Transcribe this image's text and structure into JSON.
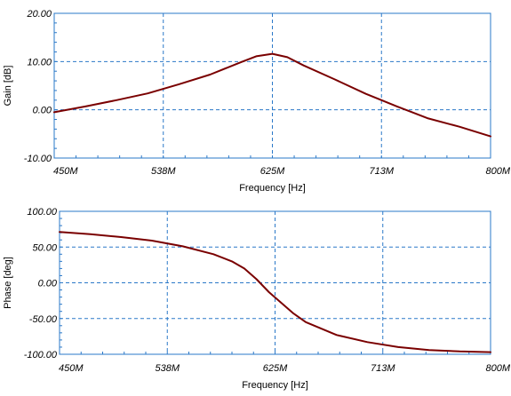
{
  "chart_data": [
    {
      "type": "line",
      "xlabel": "Frequency [Hz]",
      "ylabel": "Gain [dB]",
      "xlim": [
        450,
        800
      ],
      "ylim": [
        -10,
        20
      ],
      "x_ticks": [
        450,
        537.5,
        625,
        712.5,
        800
      ],
      "x_tick_labels": [
        "450M",
        "538M",
        "625M",
        "713M",
        "800M"
      ],
      "y_ticks": [
        20,
        10,
        0,
        -10
      ],
      "y_tick_labels": [
        "20.00",
        "10.00",
        "0.00",
        "-10.00"
      ],
      "grid": true,
      "series": [
        {
          "color": "#7a0000",
          "x": [
            450,
            475,
            500,
            525,
            550,
            575,
            600,
            612,
            625,
            637,
            650,
            675,
            700,
            712.5,
            725,
            750,
            775,
            800
          ],
          "y": [
            -0.5,
            0.7,
            2.0,
            3.4,
            5.3,
            7.3,
            9.9,
            11.1,
            11.6,
            10.9,
            9.2,
            6.3,
            3.3,
            2.0,
            0.7,
            -1.8,
            -3.5,
            -5.5
          ]
        }
      ]
    },
    {
      "type": "line",
      "xlabel": "Frequency [Hz]",
      "ylabel": "Phase [deg]",
      "xlim": [
        450,
        800
      ],
      "ylim": [
        -100,
        100
      ],
      "x_ticks": [
        450,
        537.5,
        625,
        712.5,
        800
      ],
      "x_tick_labels": [
        "450M",
        "538M",
        "625M",
        "713M",
        "800M"
      ],
      "y_ticks": [
        100,
        50,
        0,
        -50,
        -100
      ],
      "y_tick_labels": [
        "100.00",
        "50.00",
        "0.00",
        "-50.00",
        "-100.00"
      ],
      "grid": true,
      "series": [
        {
          "color": "#7a0000",
          "x": [
            450,
            475,
            500,
            525,
            550,
            575,
            590,
            600,
            610,
            620,
            630,
            640,
            650,
            675,
            700,
            725,
            750,
            775,
            800
          ],
          "y": [
            71,
            68,
            64,
            59,
            51,
            40,
            30,
            20,
            5,
            -13,
            -28,
            -43,
            -55,
            -73,
            -83,
            -90,
            -94,
            -96,
            -97
          ]
        }
      ]
    }
  ]
}
